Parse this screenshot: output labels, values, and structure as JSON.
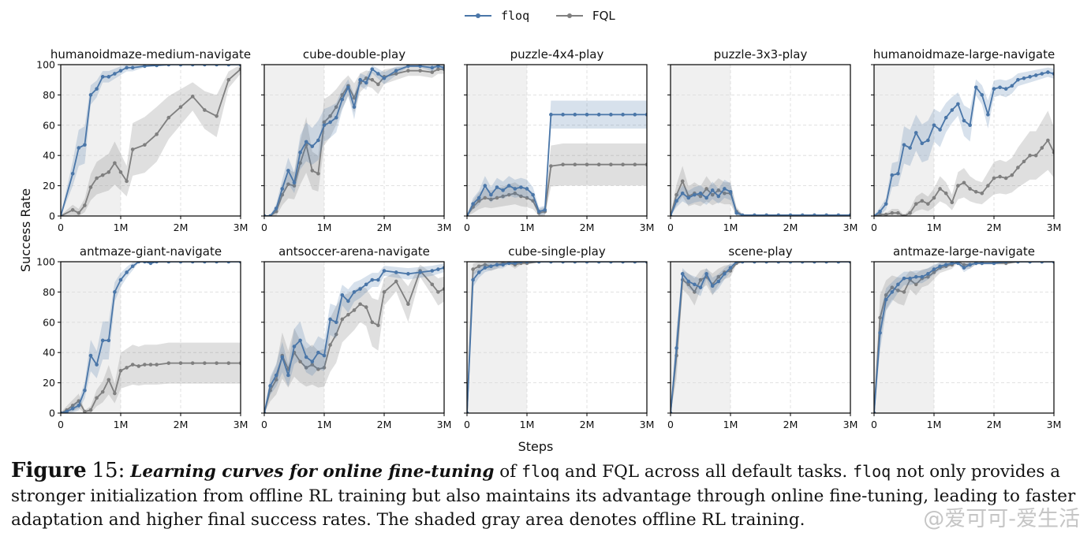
{
  "legend": {
    "items": [
      {
        "label": "floq",
        "color": "#4a76a8"
      },
      {
        "label": "FQL",
        "color": "#7f7f7f"
      }
    ],
    "placement": "top-center"
  },
  "axes": {
    "xlabel": "Steps",
    "ylabel": "Success Rate",
    "x_ticks": [
      "0",
      "1M",
      "2M",
      "3M"
    ],
    "y_ticks": [
      "0",
      "20",
      "40",
      "60",
      "80",
      "100"
    ]
  },
  "caption": {
    "label": "Figure",
    "number": "15:",
    "lead": "Learning curves for online fine-tuning",
    "t1": " of ",
    "m1": "floq",
    "t2": " and FQL across all default tasks. ",
    "m2": "floq",
    "t3": " not only provides a stronger initialization from offline RL training but also maintains its advantage through online fine-tuning, leading to faster adaptation and higher final success rates. The shaded gray area denotes offline RL training."
  },
  "watermark": "@爱可可-爱生活",
  "chart_data": [
    {
      "type": "line",
      "title": "humanoidmaze-medium-navigate",
      "xlim": [
        0,
        3000000
      ],
      "ylim": [
        0,
        100
      ],
      "offline_region": [
        0,
        1000000
      ],
      "grid": true,
      "x": [
        0,
        200000,
        300000,
        400000,
        500000,
        600000,
        700000,
        800000,
        900000,
        1000000,
        1100000,
        1200000,
        1400000,
        1600000,
        1800000,
        2000000,
        2200000,
        2400000,
        2600000,
        2800000,
        3000000
      ],
      "series": [
        {
          "name": "floq",
          "values": [
            0,
            28,
            45,
            47,
            80,
            84,
            92,
            92,
            94,
            96,
            98,
            98,
            99,
            99.5,
            100,
            100,
            100,
            100,
            100,
            100,
            100
          ]
        },
        {
          "name": "FQL",
          "values": [
            0,
            4,
            2,
            7,
            19,
            25,
            27,
            29,
            35,
            29,
            23,
            44,
            47,
            54,
            65,
            72,
            79,
            70,
            66,
            90,
            97
          ]
        }
      ]
    },
    {
      "type": "line",
      "title": "cube-double-play",
      "xlim": [
        0,
        3000000
      ],
      "ylim": [
        0,
        100
      ],
      "offline_region": [
        0,
        1000000
      ],
      "grid": true,
      "x": [
        0,
        100000,
        200000,
        300000,
        400000,
        500000,
        600000,
        700000,
        800000,
        900000,
        1000000,
        1100000,
        1200000,
        1300000,
        1400000,
        1500000,
        1600000,
        1700000,
        1800000,
        1900000,
        2000000,
        2200000,
        2400000,
        2600000,
        2800000,
        2900000,
        3000000
      ],
      "series": [
        {
          "name": "floq",
          "values": [
            0,
            0,
            5,
            18,
            30,
            22,
            42,
            49,
            46,
            50,
            60,
            62,
            65,
            77,
            85,
            72,
            90,
            88,
            97,
            94,
            91,
            96,
            99,
            99,
            98,
            99,
            98
          ]
        },
        {
          "name": "FQL",
          "values": [
            0,
            0,
            3,
            14,
            21,
            20,
            35,
            47,
            30,
            28,
            62,
            66,
            72,
            80,
            86,
            78,
            88,
            91,
            90,
            87,
            92,
            94,
            96,
            96,
            95,
            97,
            97
          ]
        }
      ]
    },
    {
      "type": "line",
      "title": "puzzle-4x4-play",
      "xlim": [
        0,
        3000000
      ],
      "ylim": [
        0,
        100
      ],
      "offline_region": [
        0,
        1000000
      ],
      "grid": true,
      "x": [
        0,
        100000,
        200000,
        300000,
        400000,
        500000,
        600000,
        700000,
        800000,
        900000,
        1000000,
        1100000,
        1200000,
        1300000,
        1400000,
        1600000,
        1800000,
        2000000,
        2200000,
        2400000,
        2600000,
        2800000,
        3000000
      ],
      "series": [
        {
          "name": "floq",
          "values": [
            0,
            8,
            12,
            20,
            14,
            19,
            17,
            20,
            18,
            19,
            18,
            14,
            3,
            4,
            67,
            67,
            67,
            67,
            67,
            67,
            67,
            67,
            67
          ]
        },
        {
          "name": "FQL",
          "values": [
            0,
            6,
            10,
            12,
            11,
            12,
            13,
            14,
            15,
            13,
            12,
            10,
            2,
            3,
            33,
            34,
            34,
            34,
            34,
            34,
            34,
            34,
            34
          ]
        }
      ]
    },
    {
      "type": "line",
      "title": "puzzle-3x3-play",
      "xlim": [
        0,
        3000000
      ],
      "ylim": [
        0,
        100
      ],
      "offline_region": [
        0,
        1000000
      ],
      "grid": true,
      "x": [
        0,
        100000,
        200000,
        300000,
        400000,
        500000,
        600000,
        700000,
        800000,
        900000,
        1000000,
        1100000,
        1200000,
        1400000,
        1600000,
        1800000,
        2000000,
        2200000,
        2400000,
        2600000,
        2800000,
        3000000
      ],
      "series": [
        {
          "name": "floq",
          "values": [
            0,
            10,
            15,
            12,
            14,
            15,
            12,
            17,
            13,
            18,
            16,
            2,
            0.5,
            0.5,
            0.5,
            0.5,
            0.5,
            0.5,
            0.5,
            0.5,
            0.5,
            0.5
          ]
        },
        {
          "name": "FQL",
          "values": [
            0,
            14,
            23,
            13,
            15,
            13,
            18,
            14,
            17,
            15,
            15,
            3,
            0.5,
            0.5,
            0.5,
            0.5,
            0.5,
            0.5,
            0.5,
            0.5,
            0.5,
            0.5
          ]
        }
      ]
    },
    {
      "type": "line",
      "title": "humanoidmaze-large-navigate",
      "xlim": [
        0,
        3000000
      ],
      "ylim": [
        0,
        100
      ],
      "offline_region": [
        0,
        1000000
      ],
      "grid": true,
      "x": [
        0,
        100000,
        200000,
        300000,
        400000,
        500000,
        600000,
        700000,
        800000,
        900000,
        1000000,
        1100000,
        1200000,
        1300000,
        1400000,
        1500000,
        1600000,
        1700000,
        1800000,
        1900000,
        2000000,
        2100000,
        2200000,
        2300000,
        2400000,
        2500000,
        2600000,
        2700000,
        2800000,
        2900000,
        3000000
      ],
      "series": [
        {
          "name": "floq",
          "values": [
            0,
            3,
            8,
            27,
            28,
            47,
            45,
            55,
            48,
            50,
            60,
            57,
            65,
            70,
            74,
            63,
            60,
            85,
            80,
            67,
            84,
            85,
            84,
            86,
            90,
            91,
            92,
            93,
            94,
            95,
            94
          ]
        },
        {
          "name": "FQL",
          "values": [
            0,
            1,
            1,
            2,
            2,
            0,
            2,
            8,
            10,
            8,
            12,
            18,
            15,
            9,
            20,
            22,
            18,
            16,
            15,
            20,
            25,
            26,
            25,
            27,
            32,
            36,
            40,
            40,
            45,
            50,
            42
          ]
        }
      ]
    },
    {
      "type": "line",
      "title": "antmaze-giant-navigate",
      "xlim": [
        0,
        3000000
      ],
      "ylim": [
        0,
        100
      ],
      "offline_region": [
        0,
        1000000
      ],
      "grid": true,
      "x": [
        0,
        100000,
        200000,
        300000,
        400000,
        500000,
        600000,
        700000,
        800000,
        900000,
        1000000,
        1100000,
        1200000,
        1300000,
        1400000,
        1500000,
        1600000,
        1800000,
        2000000,
        2200000,
        2400000,
        2600000,
        2800000,
        3000000
      ],
      "series": [
        {
          "name": "floq",
          "values": [
            0,
            1,
            3,
            5,
            15,
            38,
            32,
            48,
            48,
            80,
            88,
            93,
            97,
            100,
            100,
            99,
            100,
            100,
            100,
            100,
            100,
            100,
            100,
            100
          ]
        },
        {
          "name": "FQL",
          "values": [
            0,
            2,
            5,
            8,
            1,
            2,
            10,
            14,
            22,
            13,
            28,
            30,
            32,
            31,
            32,
            32,
            32,
            33,
            33,
            33,
            33,
            33,
            33,
            33
          ]
        }
      ]
    },
    {
      "type": "line",
      "title": "antsoccer-arena-navigate",
      "xlim": [
        0,
        3000000
      ],
      "ylim": [
        0,
        100
      ],
      "offline_region": [
        0,
        1000000
      ],
      "grid": true,
      "x": [
        0,
        100000,
        200000,
        300000,
        400000,
        500000,
        600000,
        700000,
        800000,
        900000,
        1000000,
        1100000,
        1200000,
        1300000,
        1400000,
        1500000,
        1600000,
        1700000,
        1800000,
        1900000,
        2000000,
        2200000,
        2400000,
        2600000,
        2800000,
        2900000,
        3000000
      ],
      "series": [
        {
          "name": "floq",
          "values": [
            0,
            18,
            25,
            37,
            25,
            44,
            48,
            37,
            34,
            40,
            38,
            62,
            60,
            78,
            74,
            80,
            82,
            85,
            88,
            88,
            94,
            93,
            92,
            93,
            94,
            95,
            96
          ]
        },
        {
          "name": "FQL",
          "values": [
            0,
            15,
            22,
            38,
            29,
            40,
            34,
            30,
            32,
            29,
            30,
            45,
            52,
            62,
            65,
            68,
            72,
            70,
            60,
            58,
            80,
            87,
            72,
            94,
            85,
            80,
            82
          ]
        }
      ]
    },
    {
      "type": "line",
      "title": "cube-single-play",
      "xlim": [
        0,
        3000000
      ],
      "ylim": [
        0,
        100
      ],
      "offline_region": [
        0,
        1000000
      ],
      "grid": true,
      "x": [
        0,
        100000,
        200000,
        300000,
        400000,
        500000,
        600000,
        700000,
        800000,
        900000,
        1000000,
        1200000,
        1400000,
        1600000,
        1800000,
        2000000,
        2200000,
        2400000,
        2600000,
        2800000,
        3000000
      ],
      "series": [
        {
          "name": "floq",
          "values": [
            0,
            88,
            93,
            96,
            97,
            98,
            98,
            99,
            99,
            100,
            100,
            100,
            100,
            100,
            100,
            100,
            100,
            100,
            100,
            100,
            100
          ]
        },
        {
          "name": "FQL",
          "values": [
            0,
            95,
            97,
            98,
            97,
            98,
            99,
            99,
            98,
            99,
            99,
            100,
            100,
            100,
            100,
            100,
            100,
            100,
            100,
            100,
            100
          ]
        }
      ]
    },
    {
      "type": "line",
      "title": "scene-play",
      "xlim": [
        0,
        3000000
      ],
      "ylim": [
        0,
        100
      ],
      "offline_region": [
        0,
        1000000
      ],
      "grid": true,
      "x": [
        0,
        100000,
        200000,
        300000,
        400000,
        500000,
        600000,
        700000,
        800000,
        900000,
        1000000,
        1100000,
        1200000,
        1400000,
        1600000,
        1800000,
        2000000,
        2200000,
        2400000,
        2600000,
        2800000,
        3000000
      ],
      "series": [
        {
          "name": "floq",
          "values": [
            0,
            43,
            92,
            87,
            85,
            83,
            92,
            84,
            87,
            92,
            96,
            100,
            100,
            100,
            100,
            100,
            100,
            100,
            100,
            100,
            100,
            100
          ]
        },
        {
          "name": "FQL",
          "values": [
            0,
            38,
            88,
            85,
            80,
            88,
            90,
            85,
            90,
            93,
            94,
            99,
            100,
            100,
            100,
            100,
            100,
            100,
            100,
            100,
            100,
            100
          ]
        }
      ]
    },
    {
      "type": "line",
      "title": "antmaze-large-navigate",
      "xlim": [
        0,
        3000000
      ],
      "ylim": [
        0,
        100
      ],
      "offline_region": [
        0,
        1000000
      ],
      "grid": true,
      "x": [
        0,
        100000,
        200000,
        300000,
        400000,
        500000,
        600000,
        700000,
        800000,
        900000,
        1000000,
        1100000,
        1200000,
        1300000,
        1400000,
        1500000,
        1600000,
        1700000,
        1800000,
        2000000,
        2200000,
        2400000,
        2600000,
        2800000,
        3000000
      ],
      "series": [
        {
          "name": "floq",
          "values": [
            0,
            53,
            75,
            80,
            85,
            89,
            89,
            90,
            90,
            92,
            95,
            97,
            98,
            99,
            99,
            96,
            98,
            99,
            99,
            99,
            100,
            100,
            100,
            100,
            100
          ]
        },
        {
          "name": "FQL",
          "values": [
            0,
            63,
            78,
            83,
            81,
            80,
            88,
            85,
            89,
            90,
            93,
            96,
            97,
            98,
            100,
            98,
            98,
            99,
            99,
            99,
            99,
            100,
            100,
            100,
            100
          ]
        }
      ]
    }
  ]
}
